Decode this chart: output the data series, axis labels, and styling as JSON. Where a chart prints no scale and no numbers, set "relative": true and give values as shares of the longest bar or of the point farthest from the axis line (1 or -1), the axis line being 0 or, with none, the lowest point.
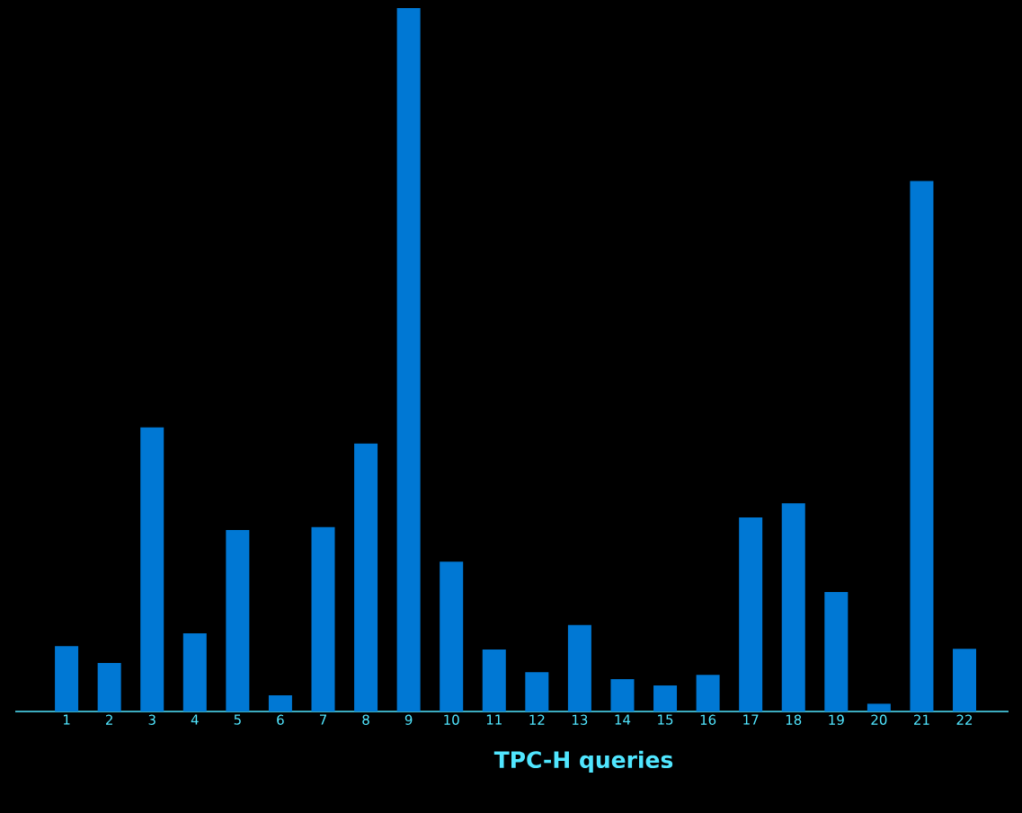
{
  "chart_data": {
    "type": "bar",
    "xlabel": "TPC-H queries",
    "relative": true,
    "color": "#0078d4",
    "categories": [
      "1",
      "2",
      "3",
      "4",
      "5",
      "6",
      "7",
      "8",
      "9",
      "10",
      "11",
      "12",
      "13",
      "14",
      "15",
      "16",
      "17",
      "18",
      "19",
      "20",
      "21",
      "22"
    ],
    "values": [
      0.093,
      0.069,
      0.404,
      0.111,
      0.258,
      0.023,
      0.262,
      0.381,
      1,
      0.213,
      0.088,
      0.056,
      0.123,
      0.046,
      0.037,
      0.052,
      0.276,
      0.296,
      0.17,
      0.011,
      0.754,
      0.089
    ],
    "grid": false
  }
}
